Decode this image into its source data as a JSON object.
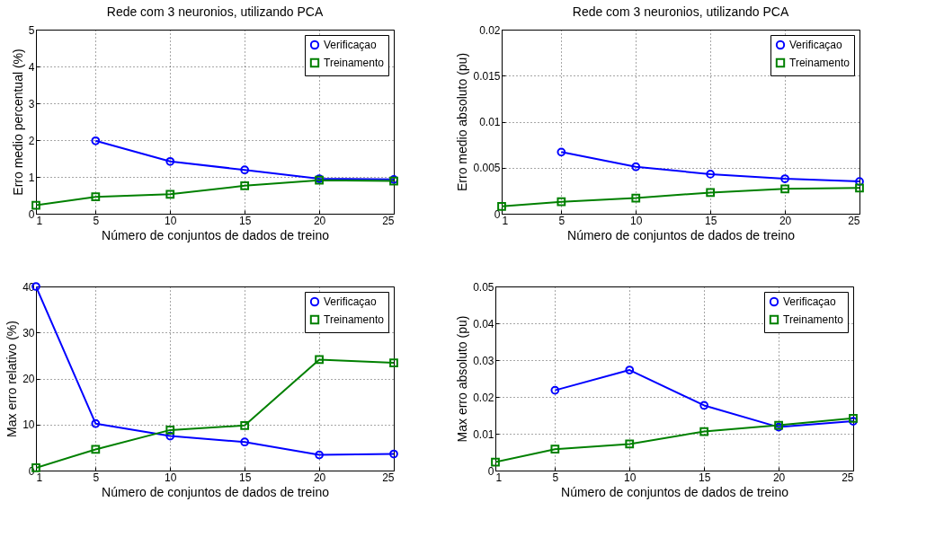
{
  "chart_data": [
    {
      "type": "line",
      "title": "Rede com 3 neuronios, utilizando PCA",
      "xlabel": "Número de conjuntos de dados de treino",
      "ylabel": "Erro medio percentual (%)",
      "x": [
        1,
        5,
        10,
        15,
        20,
        25
      ],
      "xlim": [
        1,
        25
      ],
      "xticks": [
        1,
        5,
        10,
        15,
        20,
        25
      ],
      "ylim": [
        0,
        5
      ],
      "yticks": [
        0,
        1,
        2,
        3,
        4,
        5
      ],
      "grid": true,
      "legend": "top right",
      "series": [
        {
          "name": "Verificaçao",
          "color": "#0000ff",
          "marker": "circle",
          "values": [
            null,
            1.98,
            1.42,
            1.19,
            0.95,
            0.93
          ]
        },
        {
          "name": "Treinamento",
          "color": "#008000",
          "marker": "square",
          "values": [
            0.23,
            0.46,
            0.53,
            0.76,
            0.91,
            0.89
          ]
        }
      ]
    },
    {
      "type": "line",
      "title": "Rede com 3 neuronios, utilizando PCA",
      "xlabel": "Número de conjuntos de dados de treino",
      "ylabel": "Erro medio absoluto (pu)",
      "x": [
        1,
        5,
        10,
        15,
        20,
        25
      ],
      "xlim": [
        1,
        25
      ],
      "xticks": [
        1,
        5,
        10,
        15,
        20,
        25
      ],
      "ylim": [
        0,
        0.02
      ],
      "yticks": [
        0,
        0.005,
        0.01,
        0.015,
        0.02
      ],
      "grid": true,
      "legend": "top right",
      "series": [
        {
          "name": "Verificaçao",
          "color": "#0000ff",
          "marker": "circle",
          "values": [
            null,
            0.0067,
            0.0051,
            0.0043,
            0.0038,
            0.0035
          ]
        },
        {
          "name": "Treinamento",
          "color": "#008000",
          "marker": "square",
          "values": [
            0.0008,
            0.0013,
            0.0017,
            0.0023,
            0.0027,
            0.0028
          ]
        }
      ]
    },
    {
      "type": "line",
      "xlabel": "Número de conjuntos de dados de treino",
      "ylabel": "Max erro relativo (%)",
      "x": [
        1,
        5,
        10,
        15,
        20,
        25
      ],
      "xlim": [
        1,
        25
      ],
      "xticks": [
        1,
        5,
        10,
        15,
        20,
        25
      ],
      "ylim": [
        0,
        40
      ],
      "yticks": [
        0,
        10,
        20,
        30,
        40
      ],
      "grid": true,
      "legend": "top right",
      "series": [
        {
          "name": "Verificaçao",
          "color": "#0000ff",
          "marker": "circle",
          "values": [
            40,
            10.2,
            7.5,
            6.2,
            3.4,
            3.6
          ]
        },
        {
          "name": "Treinamento",
          "color": "#008000",
          "marker": "square",
          "values": [
            0.6,
            4.6,
            8.8,
            9.8,
            24.1,
            23.4
          ]
        }
      ]
    },
    {
      "type": "line",
      "xlabel": "Número de conjuntos de dados de treino",
      "ylabel": "Max erro absoluto (pu)",
      "x": [
        1,
        5,
        10,
        15,
        20,
        25
      ],
      "xlim": [
        1,
        25
      ],
      "xticks": [
        1,
        5,
        10,
        15,
        20,
        25
      ],
      "ylim": [
        0,
        0.05
      ],
      "yticks": [
        0,
        0.01,
        0.02,
        0.03,
        0.04,
        0.05
      ],
      "grid": true,
      "legend": "top right",
      "series": [
        {
          "name": "Verificaçao",
          "color": "#0000ff",
          "marker": "circle",
          "values": [
            null,
            0.0218,
            0.0273,
            0.0177,
            0.0118,
            0.0134
          ]
        },
        {
          "name": "Treinamento",
          "color": "#008000",
          "marker": "square",
          "values": [
            0.0023,
            0.0058,
            0.0072,
            0.0106,
            0.0123,
            0.0142
          ]
        }
      ]
    }
  ]
}
